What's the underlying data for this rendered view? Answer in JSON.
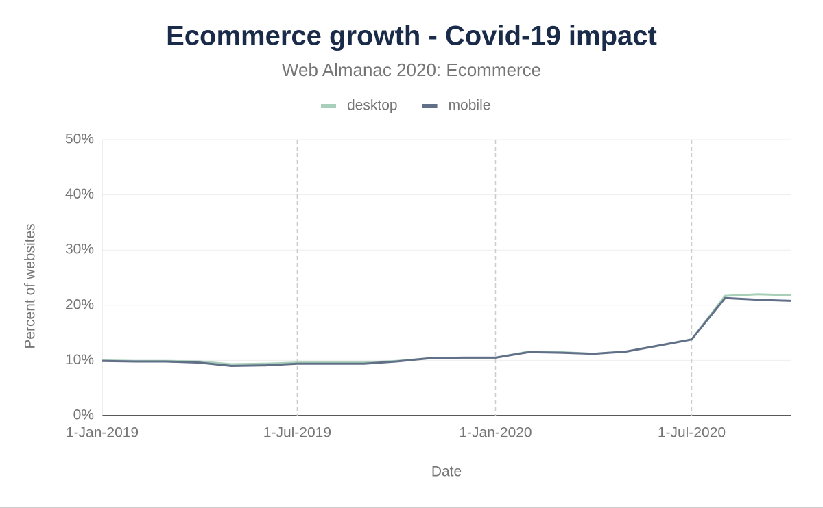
{
  "chart_data": {
    "type": "line",
    "title": "Ecommerce growth - Covid-19 impact",
    "subtitle": "Web Almanac 2020: Ecommerce",
    "x_label": "Date",
    "y_label": "Percent of websites",
    "x": [
      "2019-01-01",
      "2019-02-01",
      "2019-03-01",
      "2019-04-01",
      "2019-05-01",
      "2019-06-01",
      "2019-07-01",
      "2019-08-01",
      "2019-09-01",
      "2019-10-01",
      "2019-11-01",
      "2019-12-01",
      "2020-01-01",
      "2020-02-01",
      "2020-03-01",
      "2020-04-01",
      "2020-05-01",
      "2020-06-01",
      "2020-07-01",
      "2020-08-01",
      "2020-09-01",
      "2020-10-01"
    ],
    "series": [
      {
        "name": "desktop",
        "color": "#a8cfb9",
        "values": [
          10.0,
          9.9,
          9.9,
          9.8,
          9.3,
          9.4,
          9.6,
          9.6,
          9.6,
          9.9,
          10.4,
          10.5,
          10.5,
          11.6,
          11.5,
          11.2,
          11.6,
          12.7,
          13.8,
          21.7,
          22.0,
          21.8
        ]
      },
      {
        "name": "mobile",
        "color": "#617088",
        "values": [
          9.9,
          9.8,
          9.8,
          9.6,
          9.0,
          9.1,
          9.4,
          9.4,
          9.4,
          9.8,
          10.4,
          10.5,
          10.5,
          11.5,
          11.4,
          11.2,
          11.6,
          12.7,
          13.8,
          21.3,
          21.0,
          20.8
        ]
      }
    ],
    "xlim": [
      "2019-01-01",
      "2020-10-01"
    ],
    "xticks": [
      {
        "value": "2019-01-01",
        "label": "1-Jan-2019"
      },
      {
        "value": "2019-07-01",
        "label": "1-Jul-2019"
      },
      {
        "value": "2020-01-01",
        "label": "1-Jan-2020"
      },
      {
        "value": "2020-07-01",
        "label": "1-Jul-2020"
      }
    ],
    "ylim": [
      0,
      50
    ],
    "yticks": [
      {
        "value": 0,
        "label": "0%"
      },
      {
        "value": 10,
        "label": "10%"
      },
      {
        "value": 20,
        "label": "20%"
      },
      {
        "value": 30,
        "label": "30%"
      },
      {
        "value": 40,
        "label": "40%"
      },
      {
        "value": 50,
        "label": "50%"
      }
    ],
    "grid": true,
    "legend": "top"
  }
}
